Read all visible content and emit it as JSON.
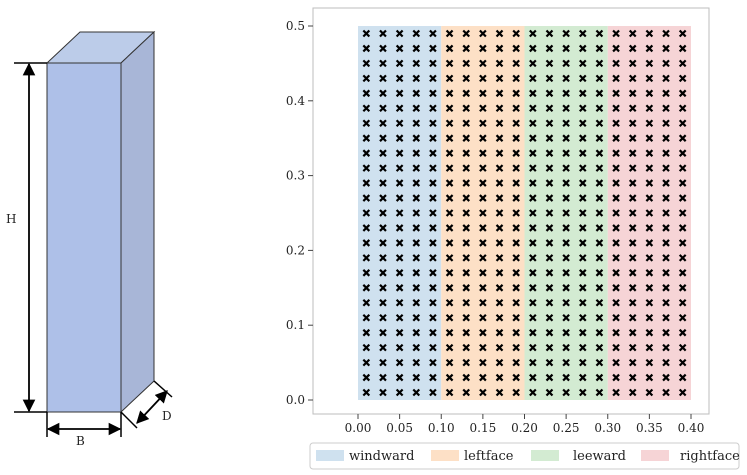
{
  "diagram": {
    "labels": {
      "height": "H",
      "breadth": "B",
      "depth": "D"
    },
    "colors": {
      "front": "#aec0e8",
      "side": "#a8b6d7",
      "top": "#bccce9",
      "stroke": "#333333"
    }
  },
  "chart_data": {
    "type": "scatter",
    "xlim": [
      0.0,
      0.4
    ],
    "ylim": [
      0.0,
      0.5
    ],
    "x_ticks": [
      "0.00",
      "0.05",
      "0.10",
      "0.15",
      "0.20",
      "0.25",
      "0.30",
      "0.35",
      "0.40"
    ],
    "y_ticks": [
      "0.0",
      "0.1",
      "0.2",
      "0.3",
      "0.4",
      "0.5"
    ],
    "grid": false,
    "legend_position": "bottom",
    "marker": "x",
    "marker_color": "#000000",
    "points": {
      "x": [
        0.01,
        0.03,
        0.05,
        0.07,
        0.09,
        0.11,
        0.13,
        0.15,
        0.17,
        0.19,
        0.21,
        0.23,
        0.25,
        0.27,
        0.29,
        0.31,
        0.33,
        0.35,
        0.37,
        0.39
      ],
      "y_start": 0.01,
      "y_step": 0.02,
      "y_count": 25
    },
    "regions": [
      {
        "name": "windward",
        "x0": 0.0,
        "x1": 0.1,
        "color": "#cfe1ef"
      },
      {
        "name": "leftface",
        "x0": 0.1,
        "x1": 0.2,
        "color": "#fde0c6"
      },
      {
        "name": "leeward",
        "x0": 0.2,
        "x1": 0.3,
        "color": "#d3ebd2"
      },
      {
        "name": "rightface",
        "x0": 0.3,
        "x1": 0.4,
        "color": "#f6d4d6"
      }
    ]
  }
}
